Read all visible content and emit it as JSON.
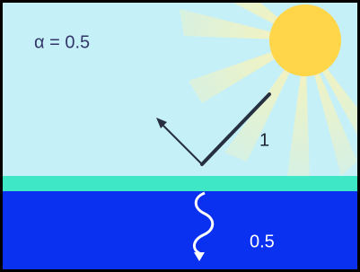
{
  "annotations": {
    "albedo": "α = 0.5",
    "incoming": "1",
    "absorbed": "0.5"
  }
}
